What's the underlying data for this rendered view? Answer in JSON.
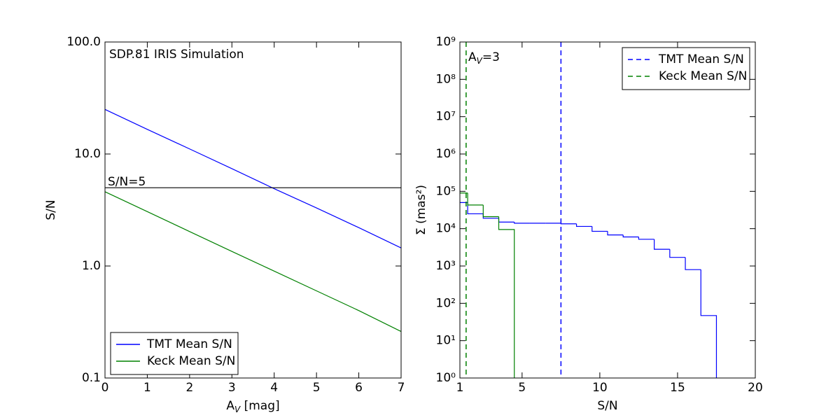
{
  "chart_data": [
    {
      "type": "line",
      "title": "SDP.81 IRIS Simulation",
      "xlabel": [
        "A",
        "V",
        " [mag]"
      ],
      "ylabel": "S/N",
      "x": [
        0,
        1,
        2,
        3,
        4,
        5,
        6,
        7
      ],
      "series": [
        {
          "name": "TMT Mean S/N",
          "color": "#0000ff",
          "values": [
            25,
            16.6,
            11.1,
            7.4,
            4.9,
            3.3,
            2.2,
            1.45
          ]
        },
        {
          "name": "Keck Mean S/N",
          "color": "#008000",
          "values": [
            4.6,
            3.06,
            2.03,
            1.35,
            0.9,
            0.6,
            0.4,
            0.26
          ]
        }
      ],
      "xlim": [
        0,
        7
      ],
      "xticks": [
        0,
        1,
        2,
        3,
        4,
        5,
        6,
        7
      ],
      "ylim": [
        0.1,
        100
      ],
      "yticks": [
        0.1,
        {
          "value": 1,
          "label": "1.0"
        },
        {
          "value": 10,
          "label": "10.0"
        },
        {
          "value": 100,
          "label": "100.0"
        }
      ],
      "yscale": "log",
      "hline": {
        "value": 5,
        "label": "S/N=5",
        "color": "#000000"
      },
      "legend": "lower left"
    },
    {
      "type": "histogram",
      "annotation": [
        "A",
        "V",
        "=3"
      ],
      "xlabel": "S/N",
      "ylabel": "Σ (mas²)",
      "series": [
        {
          "color": "#0000ff",
          "bins": [
            0.5,
            1.5,
            2.5,
            3.5,
            4.5,
            5.5,
            6.5,
            7.5,
            8.5,
            9.5,
            10.5,
            11.5,
            12.5,
            13.5,
            14.5,
            15.5,
            16.5,
            17.5
          ],
          "values": [
            50000,
            25000,
            19000,
            15000,
            14000,
            14000,
            14000,
            13500,
            11500,
            8500,
            6800,
            6000,
            5200,
            2800,
            1700,
            800,
            47
          ]
        },
        {
          "color": "#008000",
          "bins": [
            0.5,
            1.5,
            2.5,
            3.5,
            4.5
          ],
          "values": [
            90000,
            43000,
            21000,
            9500
          ]
        }
      ],
      "vlines": [
        {
          "name": "TMT Mean S/N",
          "value": 7.5,
          "color": "#0000ff",
          "style": "dashed"
        },
        {
          "name": "Keck Mean S/N",
          "value": 1.4,
          "color": "#008000",
          "style": "dashed"
        }
      ],
      "xlim": [
        1,
        20
      ],
      "xticks": [
        1,
        5,
        10,
        15,
        20
      ],
      "ylim": [
        1,
        1000000000
      ],
      "yticks": [
        {
          "value": 1,
          "label": "10⁰"
        },
        {
          "value": 10,
          "label": "10¹"
        },
        {
          "value": 100,
          "label": "10²"
        },
        {
          "value": 1000,
          "label": "10³"
        },
        {
          "value": 10000,
          "label": "10⁴"
        },
        {
          "value": 100000,
          "label": "10⁵"
        },
        {
          "value": 1000000,
          "label": "10⁶"
        },
        {
          "value": 10000000,
          "label": "10⁷"
        },
        {
          "value": 100000000,
          "label": "10⁸"
        },
        {
          "value": 1000000000,
          "label": "10⁹"
        }
      ],
      "yscale": "log",
      "legend": "upper right"
    }
  ]
}
